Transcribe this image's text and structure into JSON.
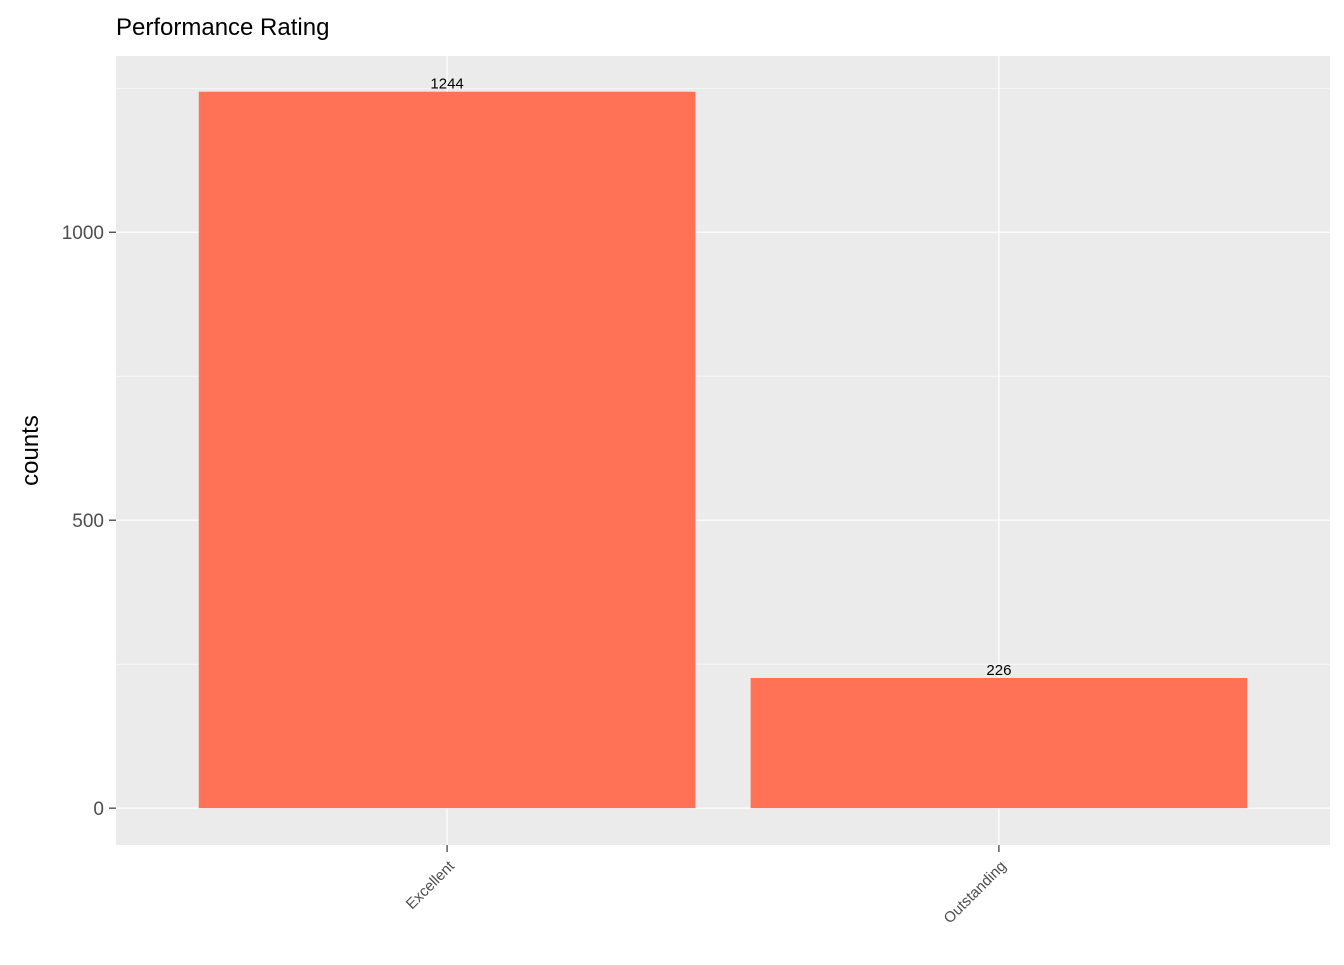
{
  "chart_data": {
    "type": "bar",
    "title": "Performance Rating",
    "xlabel": "",
    "ylabel": "counts",
    "categories": [
      "Excellent",
      "Outstanding"
    ],
    "values": [
      1244,
      226
    ],
    "data_labels": [
      "1244",
      "226"
    ],
    "ylim": [
      -64,
      1306
    ],
    "yticks": [
      0,
      500,
      1000
    ],
    "ytick_labels": [
      "0",
      "500",
      "1000"
    ],
    "grid": true,
    "legend": "none",
    "colors": {
      "bar": "#FF7256",
      "panel_background": "#EBEBEB",
      "grid": "#FFFFFF",
      "axis_text": "#4D4D4D",
      "tick": "#333333",
      "title": "#000000"
    }
  }
}
